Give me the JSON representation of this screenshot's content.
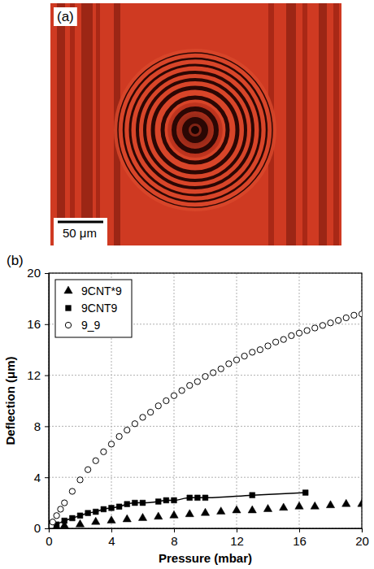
{
  "image_panel": {
    "label": "(a)",
    "scale_bar_label": "50 μm"
  },
  "chart_data": {
    "type": "scatter",
    "panel_label": "(b)",
    "x_label": "Pressure (mbar)",
    "y_label": "Deflection (μm)",
    "xlim": [
      0,
      20
    ],
    "ylim": [
      0,
      20
    ],
    "xticks": [
      0,
      4,
      8,
      12,
      16,
      20
    ],
    "yticks": [
      0,
      4,
      8,
      12,
      16,
      20
    ],
    "grid": true,
    "legend": "top-left",
    "series": [
      {
        "name": "9CNT*9",
        "color": "#000000",
        "marker": "triangle",
        "x": [
          0.5,
          1,
          2,
          3,
          4,
          5,
          6,
          7,
          8,
          9,
          10,
          11,
          12,
          13,
          14,
          15,
          16,
          17,
          18,
          19,
          20
        ],
        "values": [
          0.1,
          0.2,
          0.3,
          0.5,
          0.6,
          0.7,
          0.8,
          0.9,
          1.0,
          1.1,
          1.2,
          1.3,
          1.4,
          1.4,
          1.5,
          1.6,
          1.7,
          1.7,
          1.8,
          1.9,
          1.9
        ]
      },
      {
        "name": "9CNT9",
        "color": "#000000",
        "marker": "square",
        "line_style": "solid",
        "x": [
          0.5,
          1,
          1.5,
          2,
          2.5,
          3,
          3.5,
          4,
          4.5,
          5,
          5.5,
          6,
          7,
          7.5,
          8,
          9,
          9.5,
          10,
          13,
          16.4
        ],
        "values": [
          0.3,
          0.6,
          0.8,
          1.0,
          1.2,
          1.3,
          1.5,
          1.6,
          1.7,
          1.9,
          2.0,
          2.0,
          2.1,
          2.2,
          2.2,
          2.4,
          2.4,
          2.4,
          2.6,
          2.8
        ]
      },
      {
        "name": "9_9",
        "color": "#000000",
        "marker": "circle_open",
        "x": [
          0.25,
          0.5,
          0.75,
          1,
          1.5,
          2,
          2.5,
          3,
          3.5,
          4,
          4.5,
          5,
          5.5,
          6,
          6.5,
          7,
          7.5,
          8,
          8.5,
          9,
          9.5,
          10,
          10.5,
          11,
          11.5,
          12,
          12.5,
          13,
          13.5,
          14,
          14.5,
          15,
          15.5,
          16,
          16.5,
          17,
          17.5,
          18,
          18.5,
          19,
          19.5,
          20
        ],
        "values": [
          0.5,
          1.0,
          1.5,
          2.0,
          2.9,
          3.8,
          4.6,
          5.3,
          6.0,
          6.6,
          7.2,
          7.7,
          8.2,
          8.7,
          9.1,
          9.6,
          10.0,
          10.4,
          10.8,
          11.2,
          11.5,
          11.9,
          12.2,
          12.5,
          12.9,
          13.2,
          13.5,
          13.8,
          14.0,
          14.3,
          14.6,
          14.8,
          15.1,
          15.3,
          15.5,
          15.7,
          15.9,
          16.1,
          16.3,
          16.5,
          16.7,
          16.8
        ]
      }
    ]
  }
}
